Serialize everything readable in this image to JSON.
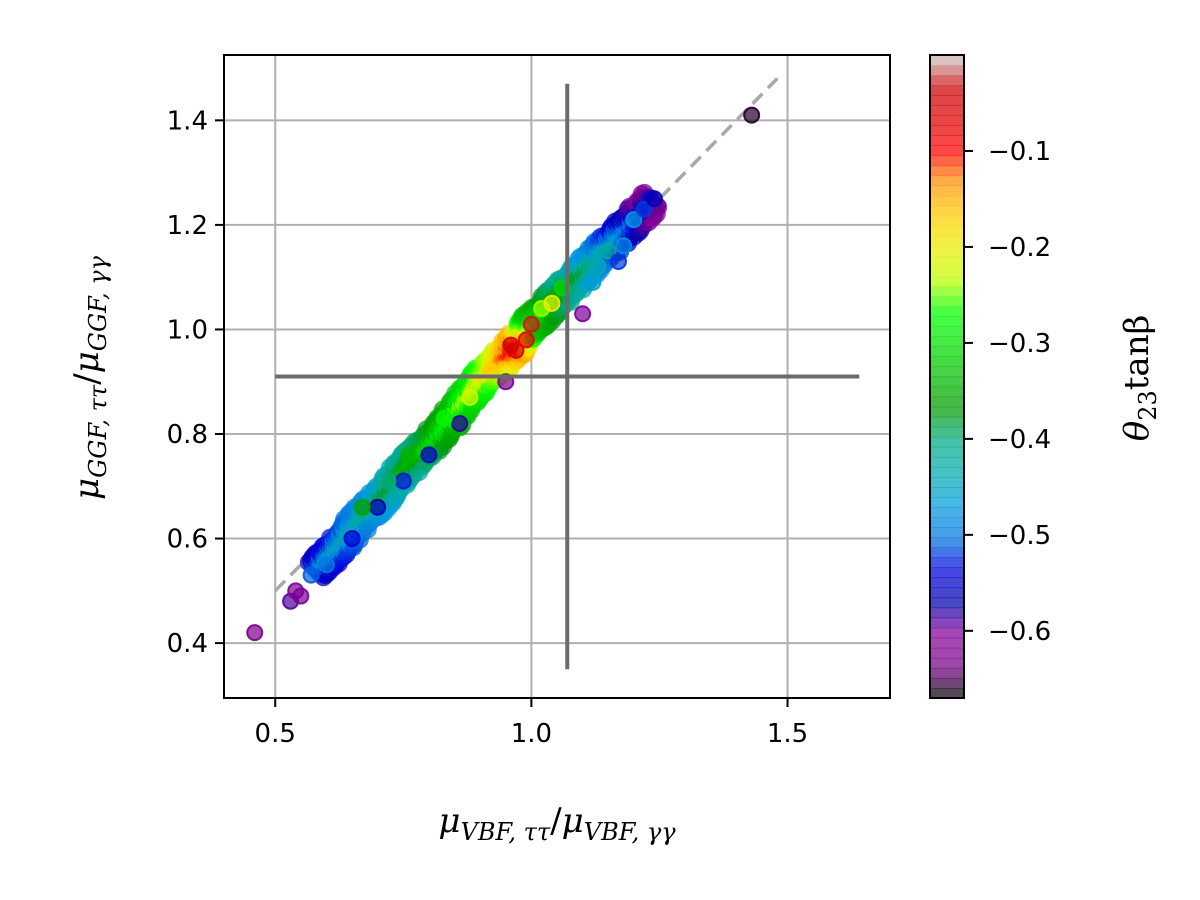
{
  "chart_data": {
    "type": "scatter",
    "title": "",
    "xlabel": "μVBF, ττ/μVBF, γγ",
    "xlabel_parts": {
      "base": "μ",
      "sub": "VBF, ττ",
      "sep": "/",
      "base2": "μ",
      "sub2": "VBF, γγ"
    },
    "ylabel": "μGGF, ττ/μGGF, γγ",
    "ylabel_parts": {
      "base": "μ",
      "sub": "GGF, ττ",
      "sep": "/",
      "base2": "μ",
      "sub2": "GGF, γγ"
    },
    "xlim": [
      0.4,
      1.7
    ],
    "ylim": [
      0.295,
      1.525
    ],
    "xticks": [
      0.5,
      1.0,
      1.5
    ],
    "xtick_labels": [
      "0.5",
      "1.0",
      "1.5"
    ],
    "yticks": [
      0.4,
      0.6,
      0.8,
      1.0,
      1.2,
      1.4
    ],
    "ytick_labels": [
      "0.4",
      "0.6",
      "0.8",
      "1.0",
      "1.2",
      "1.4"
    ],
    "grid": true,
    "colorbar": {
      "label": "θ23tanβ",
      "label_parts": {
        "sym": "θ",
        "sub": "23",
        "rest": "tanβ"
      },
      "range": [
        -0.67,
        0.0
      ],
      "ticks": [
        -0.1,
        -0.2,
        -0.3,
        -0.4,
        -0.5,
        -0.6
      ],
      "tick_labels": [
        "−0.1",
        "−0.2",
        "−0.3",
        "−0.4",
        "−0.5",
        "−0.6"
      ],
      "colormap": "nipy_spectral"
    },
    "reference_lines": {
      "diagonal_dashed": {
        "x": [
          0.5,
          1.48
        ],
        "y": [
          0.5,
          1.48
        ],
        "color": "#a8a8a8"
      },
      "horizontal": {
        "y": 0.91,
        "x": [
          0.5,
          1.64
        ],
        "color": "#6b6b6b"
      },
      "vertical": {
        "x": 1.07,
        "y": [
          0.35,
          1.47
        ],
        "color": "#6b6b6b"
      }
    },
    "band": [
      {
        "x": 0.58,
        "y": 0.54,
        "c": -0.48
      },
      {
        "x": 0.62,
        "y": 0.58,
        "c": -0.45
      },
      {
        "x": 0.66,
        "y": 0.63,
        "c": -0.42
      },
      {
        "x": 0.7,
        "y": 0.67,
        "c": -0.39
      },
      {
        "x": 0.74,
        "y": 0.72,
        "c": -0.35
      },
      {
        "x": 0.78,
        "y": 0.76,
        "c": -0.32
      },
      {
        "x": 0.82,
        "y": 0.8,
        "c": -0.29
      },
      {
        "x": 0.86,
        "y": 0.85,
        "c": -0.25
      },
      {
        "x": 0.9,
        "y": 0.9,
        "c": -0.2
      },
      {
        "x": 0.94,
        "y": 0.94,
        "c": -0.14
      },
      {
        "x": 0.97,
        "y": 0.97,
        "c": -0.06
      },
      {
        "x": 1.0,
        "y": 1.01,
        "c": -0.25
      },
      {
        "x": 1.04,
        "y": 1.05,
        "c": -0.3
      },
      {
        "x": 1.08,
        "y": 1.09,
        "c": -0.35
      },
      {
        "x": 1.12,
        "y": 1.13,
        "c": -0.4
      },
      {
        "x": 1.16,
        "y": 1.17,
        "c": -0.45
      },
      {
        "x": 1.2,
        "y": 1.21,
        "c": -0.5
      },
      {
        "x": 1.24,
        "y": 1.25,
        "c": -0.55
      }
    ],
    "points": [
      {
        "x": 0.46,
        "y": 0.42,
        "c": -0.63
      },
      {
        "x": 0.53,
        "y": 0.48,
        "c": -0.59
      },
      {
        "x": 0.54,
        "y": 0.5,
        "c": -0.62
      },
      {
        "x": 0.55,
        "y": 0.49,
        "c": -0.6
      },
      {
        "x": 0.57,
        "y": 0.53,
        "c": -0.51
      },
      {
        "x": 0.6,
        "y": 0.55,
        "c": -0.5
      },
      {
        "x": 0.65,
        "y": 0.6,
        "c": -0.54
      },
      {
        "x": 0.7,
        "y": 0.66,
        "c": -0.57
      },
      {
        "x": 0.75,
        "y": 0.71,
        "c": -0.53
      },
      {
        "x": 0.8,
        "y": 0.76,
        "c": -0.55
      },
      {
        "x": 0.86,
        "y": 0.82,
        "c": -0.58
      },
      {
        "x": 0.95,
        "y": 0.9,
        "c": -0.6
      },
      {
        "x": 0.67,
        "y": 0.66,
        "c": -0.36
      },
      {
        "x": 0.72,
        "y": 0.71,
        "c": -0.4
      },
      {
        "x": 0.76,
        "y": 0.76,
        "c": -0.34
      },
      {
        "x": 0.83,
        "y": 0.83,
        "c": -0.28
      },
      {
        "x": 0.88,
        "y": 0.87,
        "c": -0.22
      },
      {
        "x": 0.92,
        "y": 0.92,
        "c": -0.17
      },
      {
        "x": 0.96,
        "y": 0.97,
        "c": -0.05
      },
      {
        "x": 0.97,
        "y": 0.96,
        "c": -0.06
      },
      {
        "x": 0.99,
        "y": 0.98,
        "c": -0.08
      },
      {
        "x": 1.0,
        "y": 1.01,
        "c": -0.03
      },
      {
        "x": 1.02,
        "y": 1.04,
        "c": -0.24
      },
      {
        "x": 1.04,
        "y": 1.05,
        "c": -0.2
      },
      {
        "x": 1.06,
        "y": 1.08,
        "c": -0.31
      },
      {
        "x": 1.1,
        "y": 1.03,
        "c": -0.6
      },
      {
        "x": 1.12,
        "y": 1.09,
        "c": -0.46
      },
      {
        "x": 1.13,
        "y": 1.12,
        "c": -0.44
      },
      {
        "x": 1.15,
        "y": 1.15,
        "c": -0.42
      },
      {
        "x": 1.17,
        "y": 1.13,
        "c": -0.52
      },
      {
        "x": 1.18,
        "y": 1.16,
        "c": -0.48
      },
      {
        "x": 1.2,
        "y": 1.21,
        "c": -0.47
      },
      {
        "x": 1.22,
        "y": 1.23,
        "c": -0.52
      },
      {
        "x": 1.24,
        "y": 1.25,
        "c": -0.56
      },
      {
        "x": 1.43,
        "y": 1.41,
        "c": -0.66
      }
    ]
  }
}
